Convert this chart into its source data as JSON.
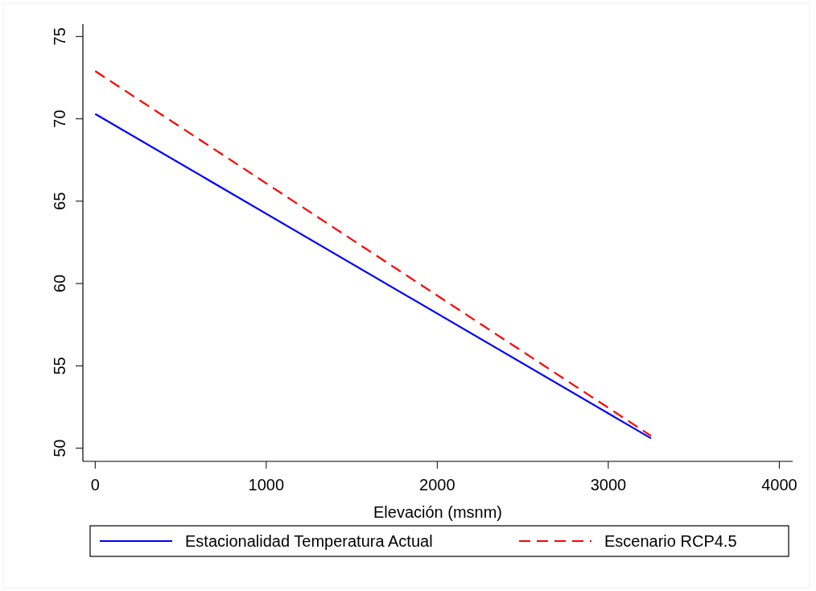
{
  "chart_data": {
    "type": "line",
    "xlabel": "Elevación (msnm)",
    "x": [
      0,
      3250
    ],
    "series": [
      {
        "name": "Estacionalidad Temperatura Actual",
        "color": "#0000ff",
        "values": [
          70.3,
          50.6
        ],
        "line_style": "solid"
      },
      {
        "name": "Escenario RCP4.5",
        "color": "#ff0000",
        "values": [
          72.9,
          50.75
        ],
        "line_style": "dashed"
      }
    ],
    "xlim": [
      -72,
      4078
    ],
    "xticks": [
      0,
      1000,
      2000,
      3000,
      4000
    ],
    "ylim": [
      49.2,
      75.75
    ],
    "yticks": [
      50,
      55,
      60,
      65,
      70,
      75
    ],
    "grid": false,
    "legend": "bottom",
    "marker": "none"
  }
}
